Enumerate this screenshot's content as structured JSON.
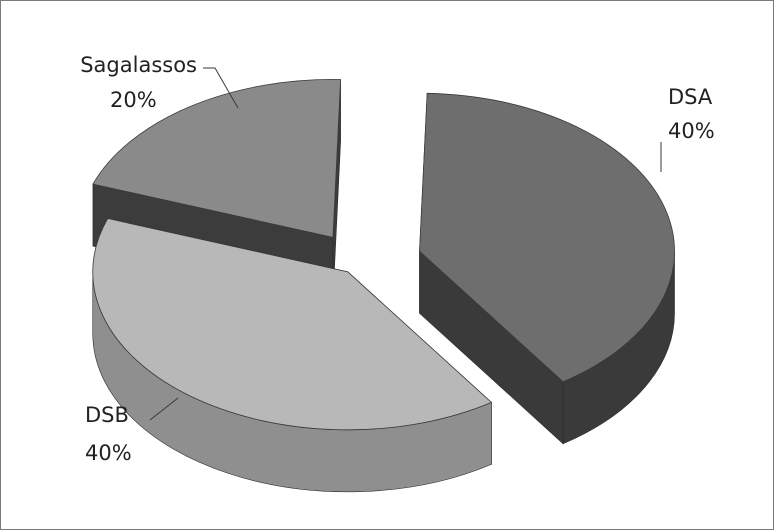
{
  "chart_data": {
    "type": "pie",
    "style": "3d-exploded",
    "title": "",
    "slices": [
      {
        "category": "DSA",
        "value": 40,
        "label": "40%",
        "top_color": "#6e6e6e",
        "side_color": "#3a3a3a"
      },
      {
        "category": "DSB",
        "value": 40,
        "label": "40%",
        "top_color": "#b8b8b8",
        "side_color": "#8f8f8f"
      },
      {
        "category": "Sagalassos",
        "value": 20,
        "label": "20%",
        "top_color": "#8a8a8a",
        "side_color": "#3c3c3c"
      }
    ]
  }
}
